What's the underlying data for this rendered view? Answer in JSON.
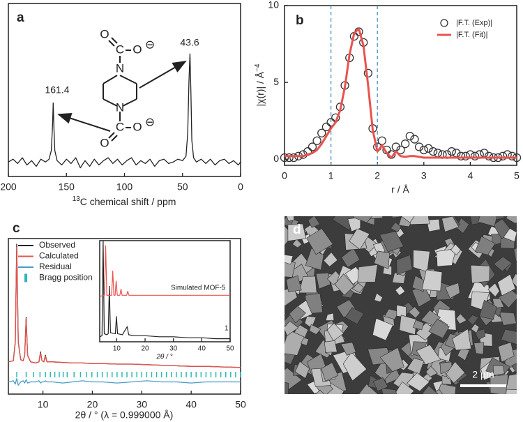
{
  "chart_data": [
    {
      "type": "line",
      "label": "a",
      "xlabel_sup": "13",
      "xlabel": "C chemical shift / ppm",
      "xlim": [
        200,
        0
      ],
      "xticks": [
        200,
        150,
        100,
        50,
        0
      ],
      "ylim": [
        -10,
        110
      ],
      "structure_labels": [
        "O",
        "C",
        "O",
        "⊖",
        "N",
        "N",
        "C",
        "O",
        "O",
        "⊖"
      ],
      "annotations": [
        "161.4",
        "43.6"
      ],
      "x": [
        200,
        196,
        192,
        188,
        184,
        180,
        176,
        172,
        168,
        165,
        163,
        162,
        161.4,
        160.8,
        160,
        158,
        154,
        150,
        146,
        142,
        138,
        134,
        130,
        126,
        122,
        118,
        114,
        110,
        106,
        102,
        98,
        94,
        90,
        86,
        82,
        78,
        74,
        70,
        66,
        62,
        58,
        54,
        50,
        47,
        45.5,
        44.5,
        43.6,
        42.8,
        42,
        40.5,
        38,
        34,
        30,
        26,
        22,
        18,
        14,
        10,
        6,
        2,
        0
      ],
      "series": [
        {
          "color": "#222222",
          "values": [
            0,
            2,
            -1,
            3,
            -2,
            1,
            -3,
            2,
            0,
            2,
            8,
            25,
            41,
            24,
            8,
            1,
            -2,
            2,
            -1,
            3,
            -4,
            1,
            -3,
            2,
            -2,
            1,
            3,
            -1,
            2,
            -2,
            1,
            3,
            -2,
            1,
            -1,
            2,
            -3,
            1,
            2,
            -1,
            0,
            2,
            1,
            4,
            20,
            55,
            75,
            50,
            15,
            3,
            0,
            2,
            -1,
            2,
            -2,
            1,
            2,
            -1,
            1,
            -2,
            0
          ]
        }
      ]
    },
    {
      "type": "line",
      "label": "b",
      "xlabel": "r / Å",
      "ylabel": "|χ(r)| / Å",
      "ylabel_sup": "−4",
      "xlim": [
        0,
        5
      ],
      "xticks": [
        0,
        1,
        2,
        3,
        4,
        5
      ],
      "ylim": [
        -0.4,
        10
      ],
      "yticks": [
        0,
        5,
        10
      ],
      "vlines": [
        1,
        2
      ],
      "vline_color": "#4a90c8",
      "x": [
        0,
        0.1,
        0.2,
        0.3,
        0.4,
        0.5,
        0.6,
        0.7,
        0.8,
        0.9,
        1,
        1.1,
        1.2,
        1.3,
        1.4,
        1.5,
        1.6,
        1.7,
        1.8,
        1.9,
        2,
        2.1,
        2.2,
        2.3,
        2.4,
        2.5,
        2.6,
        2.7,
        2.8,
        2.9,
        3,
        3.1,
        3.2,
        3.3,
        3.4,
        3.5,
        3.6,
        3.7,
        3.8,
        3.9,
        4,
        4.1,
        4.2,
        4.3,
        4.4,
        4.5,
        4.6,
        4.7,
        4.8,
        4.9,
        5
      ],
      "series": [
        {
          "name": "|F.T. (Exp)|",
          "color": "#333333",
          "marker": "circle",
          "values": [
            0.1,
            0.1,
            0.1,
            0.2,
            0.3,
            0.5,
            0.8,
            1.2,
            1.7,
            2.1,
            2.4,
            2.7,
            3.4,
            4.8,
            6.6,
            8.0,
            8.3,
            7.6,
            5.6,
            2.0,
            0.8,
            1.2,
            0.6,
            0.3,
            0.8,
            0.6,
            1.0,
            1.5,
            1.3,
            0.8,
            0.6,
            0.7,
            0.5,
            0.4,
            0.3,
            0.3,
            0.5,
            0.4,
            0.2,
            0.2,
            0.3,
            0.2,
            0.3,
            0.4,
            0.2,
            0.1,
            0.1,
            0.2,
            0.3,
            0.2,
            0.1
          ]
        },
        {
          "name": "|F.T. (Fit)|",
          "color": "#e8534f",
          "values": [
            0.2,
            0.2,
            0.2,
            0.2,
            0.2,
            0.3,
            0.4,
            0.6,
            1.0,
            1.5,
            2.0,
            2.4,
            3.2,
            4.7,
            6.8,
            8.2,
            8.5,
            7.4,
            4.8,
            1.9,
            0.5,
            0.9,
            0.4,
            0.1,
            0.5,
            0.2,
            0.15,
            0.2,
            0.2,
            0.15,
            0.1,
            0.1,
            0.1,
            0.1,
            0.1,
            0.1,
            0.1,
            0.1,
            0.1,
            0.1,
            0.1,
            0.1,
            0.1,
            0.1,
            0.1,
            0.1,
            0.1,
            0.1,
            0.1,
            0.1,
            0.1
          ]
        }
      ]
    },
    {
      "type": "line",
      "label": "c",
      "xlabel": "2θ / ° (λ =  0.999000 Å)",
      "xlim": [
        3,
        50
      ],
      "xticks": [
        10,
        20,
        30,
        40,
        50
      ],
      "ylim": [
        -27,
        113
      ],
      "x": [
        3,
        4,
        4.4,
        4.7,
        5.0,
        5.5,
        6.0,
        6.3,
        6.6,
        6.9,
        7.5,
        8.5,
        9.2,
        9.5,
        9.8,
        10.2,
        10.5,
        10.8,
        12,
        14,
        16,
        18,
        20,
        22,
        25,
        28,
        31,
        34,
        37,
        40,
        43,
        46,
        50
      ],
      "series": [
        {
          "name": "Observed",
          "color": "#222222",
          "values": [
            2,
            3,
            20,
            108,
            20,
            4,
            3,
            8,
            42,
            8,
            2,
            1,
            2,
            11,
            3,
            2,
            8,
            2,
            2,
            1.5,
            1,
            1,
            0.5,
            0.5,
            0,
            0,
            -0.5,
            -1,
            -1.5,
            -2,
            -2,
            -2.5,
            -3
          ]
        },
        {
          "name": "Calculated",
          "color": "#e8534f",
          "values": [
            2,
            3,
            19,
            105,
            19,
            4,
            3,
            8,
            41,
            8,
            2,
            1,
            2,
            10,
            3,
            2,
            7,
            2,
            2,
            1.5,
            1,
            1,
            0.5,
            0.5,
            0,
            0,
            -0.5,
            -1,
            -1.5,
            -2,
            -2,
            -2.5,
            -3
          ]
        },
        {
          "name": "Residual",
          "color": "#4a9cc8",
          "values": [
            -16,
            -15,
            -18,
            -13,
            -19,
            -16,
            -15,
            -17,
            -14,
            -17,
            -16,
            -16,
            -15,
            -17,
            -16,
            -16,
            -15,
            -16,
            -16,
            -17,
            -16,
            -15,
            -16,
            -16,
            -17,
            -16,
            -15,
            -16,
            -16,
            -17,
            -16,
            -16,
            -16
          ]
        }
      ],
      "bragg": {
        "name": "Bragg position",
        "color": "#2fb6b8",
        "positions": [
          4.7,
          6.6,
          8.1,
          9.4,
          10.5,
          11.5,
          12.4,
          13.3,
          14.1,
          14.9,
          16.3,
          17.6,
          18.8,
          19.9,
          21,
          22,
          23,
          24,
          25,
          26,
          27,
          28,
          29,
          30,
          31,
          32,
          33,
          34,
          35,
          36,
          37,
          38,
          39,
          40,
          41,
          42,
          43,
          44,
          45,
          46,
          47,
          48,
          49,
          50
        ]
      },
      "inset": {
        "xlim": [
          4,
          50
        ],
        "xticks": [
          10,
          20,
          30,
          40,
          50
        ],
        "ylim": [
          0,
          100
        ],
        "xlabel": "2θ / °",
        "series": [
          {
            "name": "1",
            "color": "#222222",
            "x": [
              4,
              4.8,
              5.2,
              5.6,
              6.5,
              7.0,
              7.4,
              7.8,
              9.5,
              9.9,
              10.3,
              12,
              13.7,
              14.2,
              16,
              20,
              25,
              30,
              35,
              40,
              45,
              50
            ],
            "values": [
              5,
              6,
              100,
              8,
              7,
              8,
              55,
              9,
              8,
              25,
              8,
              7,
              15,
              7,
              6,
              6,
              5,
              5,
              4,
              4,
              3,
              3
            ]
          },
          {
            "name": "Simulated MOF-5",
            "color": "#e8534f",
            "x": [
              4,
              5.7,
              6.1,
              6.5,
              8.2,
              8.6,
              9.0,
              9.4,
              9.8,
              10.2,
              11.1,
              11.5,
              11.9,
              13.5,
              13.9,
              14.3,
              16,
              18,
              20,
              22,
              25,
              30,
              35,
              40,
              45,
              50
            ],
            "values": [
              45,
              46,
              95,
              46,
              46,
              70,
              46,
              46,
              60,
              46,
              46,
              52,
              46,
              46,
              50,
              46,
              46,
              46,
              46,
              46,
              46,
              46,
              46,
              46,
              46,
              46
            ]
          }
        ]
      }
    }
  ],
  "image_panel": {
    "label": "d",
    "scale_bar": "2 µm"
  }
}
